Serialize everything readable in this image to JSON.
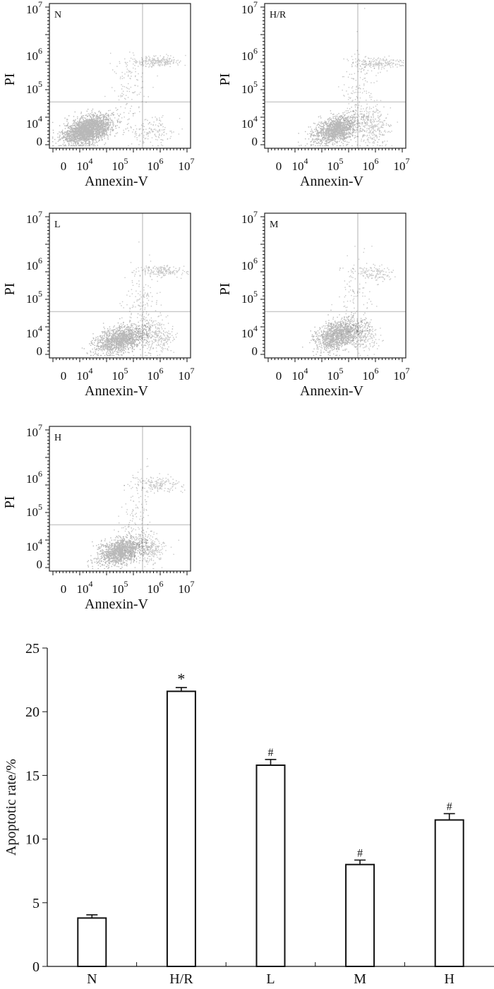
{
  "chart_data": [
    {
      "type": "scatter",
      "panel": "N",
      "label": "N",
      "xlabel": "Annexin-V",
      "ylabel": "PI",
      "x_tick_labels": [
        {
          "b": "0",
          "e": ""
        },
        {
          "b": "10",
          "e": "4"
        },
        {
          "b": "10",
          "e": "5"
        },
        {
          "b": "10",
          "e": "6"
        },
        {
          "b": "10",
          "e": "7"
        }
      ],
      "y_tick_labels": [
        {
          "b": "0",
          "e": ""
        },
        {
          "b": "10",
          "e": "4"
        },
        {
          "b": "10",
          "e": "5"
        },
        {
          "b": "10",
          "e": "6"
        },
        {
          "b": "10",
          "e": "7"
        }
      ],
      "populations": [
        {
          "name": "viable",
          "n": 2200,
          "cx": 0.27,
          "cy": 0.13,
          "sx": 0.085,
          "sy": 0.045
        },
        {
          "name": "late",
          "n": 220,
          "cx": 0.76,
          "cy": 0.6,
          "sx": 0.1,
          "sy": 0.018
        },
        {
          "name": "early",
          "n": 140,
          "cx": 0.72,
          "cy": 0.12,
          "sx": 0.08,
          "sy": 0.05
        },
        {
          "name": "bridge",
          "n": 120,
          "cx": 0.56,
          "cy": 0.38,
          "sx": 0.07,
          "sy": 0.14
        }
      ]
    },
    {
      "type": "scatter",
      "panel": "H/R",
      "label": "H/R",
      "xlabel": "Annexin-V",
      "ylabel": "PI",
      "x_tick_labels": [
        {
          "b": "0",
          "e": ""
        },
        {
          "b": "10",
          "e": "4"
        },
        {
          "b": "10",
          "e": "5"
        },
        {
          "b": "10",
          "e": "6"
        },
        {
          "b": "10",
          "e": "7"
        }
      ],
      "y_tick_labels": [
        {
          "b": "0",
          "e": ""
        },
        {
          "b": "10",
          "e": "4"
        },
        {
          "b": "10",
          "e": "5"
        },
        {
          "b": "10",
          "e": "6"
        },
        {
          "b": "10",
          "e": "7"
        }
      ],
      "populations": [
        {
          "name": "viable",
          "n": 1300,
          "cx": 0.5,
          "cy": 0.13,
          "sx": 0.08,
          "sy": 0.045
        },
        {
          "name": "late",
          "n": 200,
          "cx": 0.79,
          "cy": 0.59,
          "sx": 0.09,
          "sy": 0.02
        },
        {
          "name": "early",
          "n": 300,
          "cx": 0.76,
          "cy": 0.16,
          "sx": 0.06,
          "sy": 0.07
        },
        {
          "name": "bridge",
          "n": 160,
          "cx": 0.66,
          "cy": 0.38,
          "sx": 0.06,
          "sy": 0.15
        }
      ]
    },
    {
      "type": "scatter",
      "panel": "L",
      "label": "L",
      "xlabel": "Annexin-V",
      "ylabel": "PI",
      "x_tick_labels": [
        {
          "b": "0",
          "e": ""
        },
        {
          "b": "10",
          "e": "4"
        },
        {
          "b": "10",
          "e": "5"
        },
        {
          "b": "10",
          "e": "6"
        },
        {
          "b": "10",
          "e": "7"
        }
      ],
      "y_tick_labels": [
        {
          "b": "0",
          "e": ""
        },
        {
          "b": "10",
          "e": "4"
        },
        {
          "b": "10",
          "e": "5"
        },
        {
          "b": "10",
          "e": "6"
        },
        {
          "b": "10",
          "e": "7"
        }
      ],
      "populations": [
        {
          "name": "viable",
          "n": 1300,
          "cx": 0.5,
          "cy": 0.13,
          "sx": 0.09,
          "sy": 0.045
        },
        {
          "name": "late",
          "n": 180,
          "cx": 0.8,
          "cy": 0.6,
          "sx": 0.08,
          "sy": 0.02
        },
        {
          "name": "early",
          "n": 260,
          "cx": 0.76,
          "cy": 0.15,
          "sx": 0.06,
          "sy": 0.06
        },
        {
          "name": "bridge",
          "n": 150,
          "cx": 0.66,
          "cy": 0.38,
          "sx": 0.06,
          "sy": 0.15
        }
      ]
    },
    {
      "type": "scatter",
      "panel": "M",
      "label": "M",
      "xlabel": "Annexin-V",
      "ylabel": "PI",
      "x_tick_labels": [
        {
          "b": "0",
          "e": ""
        },
        {
          "b": "10",
          "e": "4"
        },
        {
          "b": "10",
          "e": "5"
        },
        {
          "b": "10",
          "e": "6"
        },
        {
          "b": "10",
          "e": "7"
        }
      ],
      "y_tick_labels": [
        {
          "b": "0",
          "e": ""
        },
        {
          "b": "10",
          "e": "4"
        },
        {
          "b": "10",
          "e": "5"
        },
        {
          "b": "10",
          "e": "6"
        },
        {
          "b": "10",
          "e": "7"
        }
      ],
      "populations": [
        {
          "name": "viable",
          "n": 1300,
          "cx": 0.52,
          "cy": 0.16,
          "sx": 0.08,
          "sy": 0.05
        },
        {
          "name": "late",
          "n": 130,
          "cx": 0.78,
          "cy": 0.59,
          "sx": 0.07,
          "sy": 0.03
        },
        {
          "name": "early",
          "n": 140,
          "cx": 0.72,
          "cy": 0.15,
          "sx": 0.05,
          "sy": 0.05
        },
        {
          "name": "bridge",
          "n": 120,
          "cx": 0.64,
          "cy": 0.38,
          "sx": 0.06,
          "sy": 0.15
        }
      ]
    },
    {
      "type": "scatter",
      "panel": "H",
      "label": "H",
      "xlabel": "Annexin-V",
      "ylabel": "PI",
      "x_tick_labels": [
        {
          "b": "0",
          "e": ""
        },
        {
          "b": "10",
          "e": "4"
        },
        {
          "b": "10",
          "e": "5"
        },
        {
          "b": "10",
          "e": "6"
        },
        {
          "b": "10",
          "e": "7"
        }
      ],
      "y_tick_labels": [
        {
          "b": "0",
          "e": ""
        },
        {
          "b": "10",
          "e": "4"
        },
        {
          "b": "10",
          "e": "5"
        },
        {
          "b": "10",
          "e": "6"
        },
        {
          "b": "10",
          "e": "7"
        }
      ],
      "populations": [
        {
          "name": "viable",
          "n": 1300,
          "cx": 0.5,
          "cy": 0.14,
          "sx": 0.08,
          "sy": 0.045
        },
        {
          "name": "late",
          "n": 160,
          "cx": 0.77,
          "cy": 0.6,
          "sx": 0.08,
          "sy": 0.025
        },
        {
          "name": "early",
          "n": 200,
          "cx": 0.72,
          "cy": 0.15,
          "sx": 0.05,
          "sy": 0.05
        },
        {
          "name": "bridge",
          "n": 140,
          "cx": 0.63,
          "cy": 0.38,
          "sx": 0.06,
          "sy": 0.15
        }
      ]
    },
    {
      "type": "bar",
      "categories": [
        "N",
        "H/R",
        "L",
        "M",
        "H"
      ],
      "values": [
        3.8,
        21.6,
        15.8,
        8.0,
        11.5
      ],
      "errors": [
        0.25,
        0.3,
        0.45,
        0.35,
        0.5
      ],
      "annotations": [
        "",
        "*",
        "#",
        "#",
        "#"
      ],
      "ylabel": "Apoptotic rate/%",
      "xlabel": "",
      "ylim": [
        0,
        25
      ],
      "yticks": [
        0,
        5,
        10,
        15,
        20,
        25
      ]
    }
  ]
}
